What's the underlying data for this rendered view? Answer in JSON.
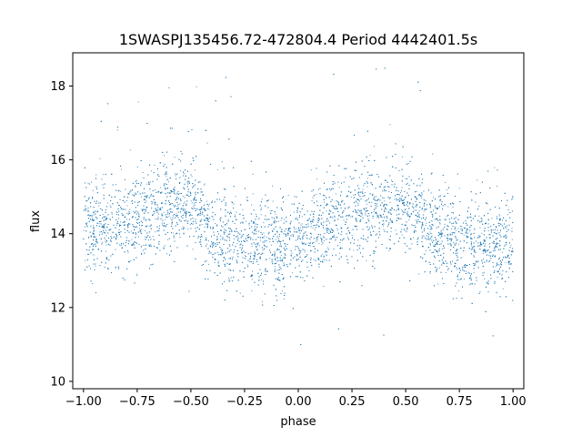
{
  "chart_data": {
    "type": "scatter",
    "title": "1SWASPJ135456.72-472804.4 Period 4442401.5s",
    "xlabel": "phase",
    "ylabel": "flux",
    "xlim": [
      -1.05,
      1.05
    ],
    "ylim": [
      9.8,
      18.9
    ],
    "xticks": [
      -1.0,
      -0.75,
      -0.5,
      -0.25,
      0.0,
      0.25,
      0.5,
      0.75,
      1.0
    ],
    "xtick_labels": [
      "−1.00",
      "−0.75",
      "−0.50",
      "−0.25",
      "0.00",
      "0.25",
      "0.50",
      "0.75",
      "1.00"
    ],
    "yticks": [
      10,
      12,
      14,
      16,
      18
    ],
    "ytick_labels": [
      "10",
      "12",
      "14",
      "16",
      "18"
    ],
    "grid": false,
    "legend": "none",
    "point_color": "#1f77b4",
    "series": [
      {
        "x_range": [
          -1.0,
          1.0
        ],
        "flux_profile": {
          "phase": [
            -1.0,
            -0.9,
            -0.8,
            -0.7,
            -0.6,
            -0.5,
            -0.4,
            -0.3,
            -0.25,
            -0.2,
            -0.1,
            0.0,
            0.1,
            0.2,
            0.3,
            0.4,
            0.5,
            0.6,
            0.7,
            0.75,
            0.8,
            0.9,
            1.0
          ],
          "median_flux": [
            14.1,
            14.3,
            14.3,
            14.6,
            14.7,
            14.8,
            14.0,
            13.8,
            13.6,
            13.7,
            13.7,
            13.8,
            14.1,
            14.3,
            14.6,
            14.7,
            14.8,
            14.1,
            13.9,
            13.6,
            13.7,
            13.7,
            13.8
          ],
          "typical_spread": 0.6,
          "outlier_range": [
            10.2,
            18.5
          ]
        },
        "approx_point_count": 9000
      }
    ]
  }
}
